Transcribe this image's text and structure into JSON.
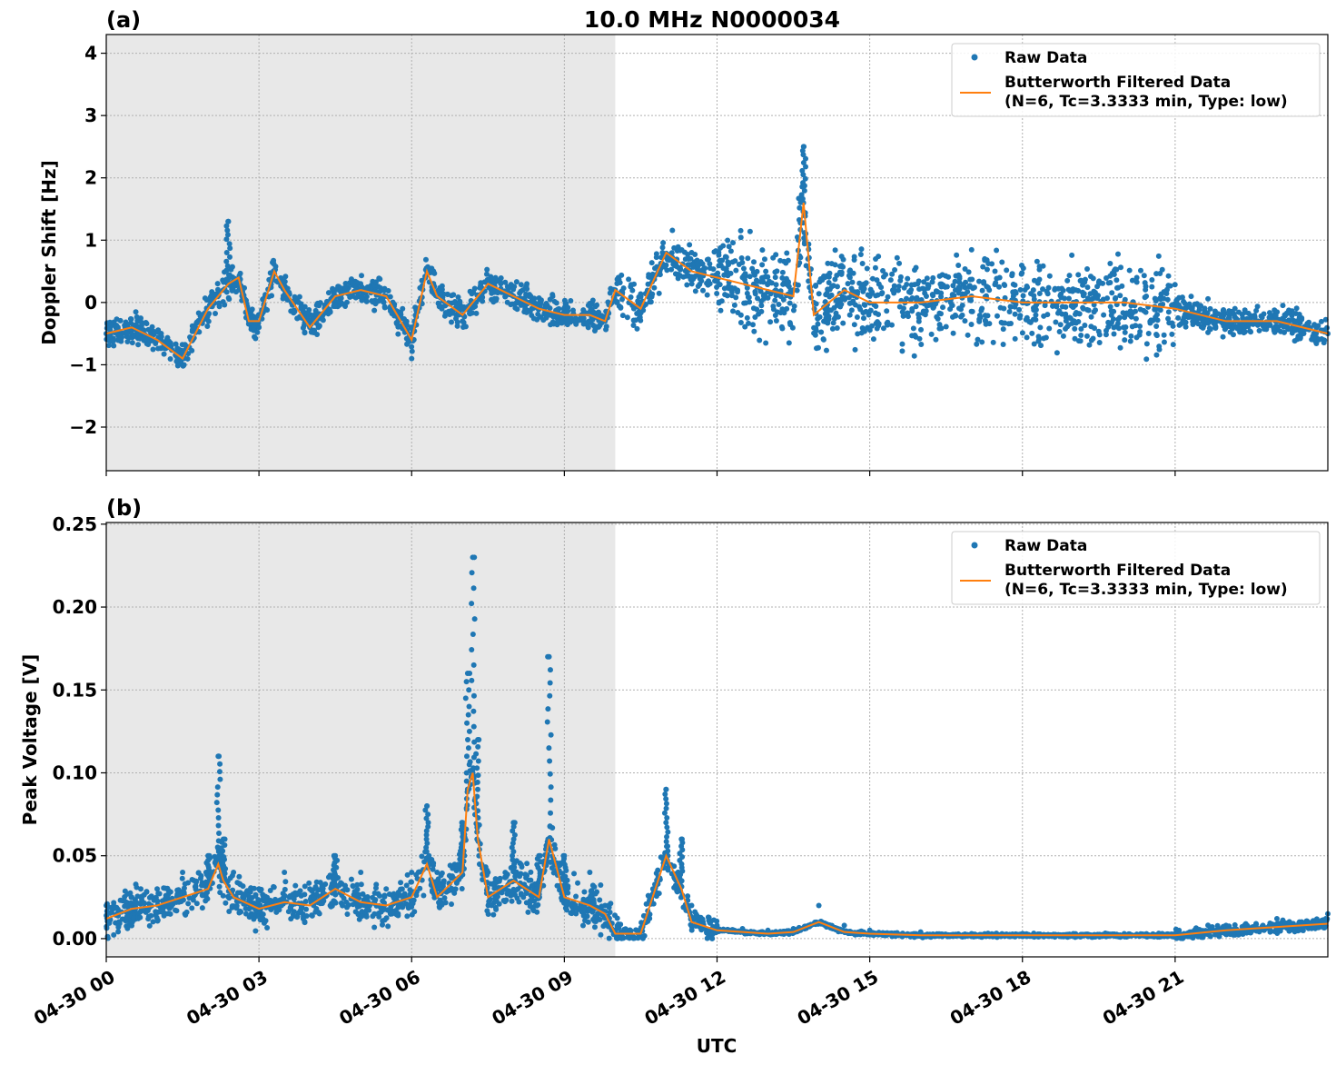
{
  "figure": {
    "title": "10.0 MHz N0000034",
    "xlabel": "UTC",
    "x_tick_labels": [
      "04-30 00",
      "04-30 03",
      "04-30 06",
      "04-30 09",
      "04-30 12",
      "04-30 15",
      "04-30 18",
      "04-30 21"
    ]
  },
  "colors": {
    "raw": "#1f77b4",
    "filtered": "#ff7f0e",
    "shade": "#e8e8e8"
  },
  "chart_data": [
    {
      "type": "scatter",
      "panel_label": "(a)",
      "ylabel": "Doppler Shift [Hz]",
      "xlim": [
        0,
        24
      ],
      "ylim": [
        -2.7,
        4.3
      ],
      "y_ticks": [
        -2,
        -1,
        0,
        1,
        2,
        3,
        4
      ],
      "y_tick_labels": [
        "−2",
        "−1",
        "0",
        "1",
        "2",
        "3",
        "4"
      ],
      "shaded_x_range": [
        0,
        10
      ],
      "grid": true,
      "legend_position": "top-right",
      "legend": [
        {
          "label": "Raw Data"
        },
        {
          "label_line1": "Butterworth Filtered Data",
          "label_line2": "(N=6, Tc=3.3333 min, Type: low)"
        }
      ],
      "series": [
        {
          "name": "Raw Data",
          "type": "scatter",
          "x": [
            0.0,
            0.5,
            1.0,
            1.5,
            2.0,
            2.4,
            2.6,
            2.8,
            3.0,
            3.3,
            3.5,
            4.0,
            4.5,
            5.0,
            5.5,
            6.0,
            6.3,
            6.5,
            7.0,
            7.5,
            8.0,
            8.5,
            9.0,
            9.5,
            9.8,
            10.0,
            10.5,
            11.0,
            11.5,
            12.0,
            12.5,
            13.0,
            13.5,
            13.7,
            13.9,
            14.5,
            15.0,
            16.0,
            17.0,
            18.0,
            19.0,
            20.0,
            21.0,
            21.5,
            22.0,
            23.0,
            24.0
          ],
          "y": [
            -0.5,
            -0.5,
            -0.6,
            -0.9,
            -0.2,
            1.3,
            0.3,
            -0.3,
            -0.4,
            0.5,
            0.2,
            -0.4,
            0.2,
            0.2,
            0.1,
            -0.9,
            0.5,
            0.1,
            -0.3,
            0.3,
            0.1,
            -0.1,
            -0.2,
            -0.3,
            -0.3,
            0.2,
            0.0,
            0.6,
            0.8,
            0.4,
            0.4,
            0.3,
            0.2,
            2.5,
            0.0,
            0.2,
            0.1,
            0.0,
            0.1,
            0.0,
            0.0,
            0.0,
            -0.1,
            -0.2,
            -0.3,
            -0.3,
            -0.5
          ]
        },
        {
          "name": "Butterworth Filtered Data",
          "type": "line",
          "x": [
            0.0,
            0.5,
            1.0,
            1.5,
            2.0,
            2.4,
            2.6,
            2.8,
            3.0,
            3.3,
            3.5,
            4.0,
            4.5,
            5.0,
            5.5,
            6.0,
            6.3,
            6.5,
            7.0,
            7.5,
            8.0,
            8.5,
            9.0,
            9.5,
            9.8,
            10.0,
            10.5,
            11.0,
            11.5,
            12.0,
            12.5,
            13.0,
            13.5,
            13.7,
            13.9,
            14.5,
            15.0,
            16.0,
            17.0,
            18.0,
            19.0,
            20.0,
            21.0,
            21.5,
            22.0,
            23.0,
            24.0
          ],
          "y": [
            -0.5,
            -0.4,
            -0.6,
            -0.9,
            -0.1,
            0.3,
            0.4,
            -0.3,
            -0.3,
            0.5,
            0.2,
            -0.4,
            0.1,
            0.2,
            0.1,
            -0.6,
            0.5,
            0.1,
            -0.2,
            0.3,
            0.1,
            -0.1,
            -0.2,
            -0.2,
            -0.3,
            0.2,
            -0.1,
            0.8,
            0.5,
            0.4,
            0.3,
            0.2,
            0.1,
            1.6,
            -0.2,
            0.2,
            0.0,
            0.0,
            0.1,
            0.0,
            0.0,
            0.0,
            -0.1,
            -0.2,
            -0.3,
            -0.3,
            -0.5
          ]
        }
      ]
    },
    {
      "type": "scatter",
      "panel_label": "(b)",
      "ylabel": "Peak Voltage [V]",
      "xlim": [
        0,
        24
      ],
      "ylim": [
        -0.011,
        0.251
      ],
      "y_ticks": [
        0.0,
        0.05,
        0.1,
        0.15,
        0.2,
        0.25
      ],
      "y_tick_labels": [
        "0.00",
        "0.05",
        "0.10",
        "0.15",
        "0.20",
        "0.25"
      ],
      "shaded_x_range": [
        0,
        10
      ],
      "grid": true,
      "legend_position": "top-right",
      "legend": [
        {
          "label": "Raw Data"
        },
        {
          "label_line1": "Butterworth Filtered Data",
          "label_line2": "(N=6, Tc=3.3333 min, Type: low)"
        }
      ],
      "series": [
        {
          "name": "Raw Data",
          "type": "scatter",
          "x": [
            0.0,
            0.5,
            1.0,
            1.5,
            2.0,
            2.2,
            2.3,
            2.5,
            3.0,
            3.5,
            4.0,
            4.5,
            5.0,
            5.5,
            6.0,
            6.3,
            6.5,
            7.0,
            7.1,
            7.2,
            7.3,
            7.5,
            8.0,
            8.5,
            8.7,
            9.0,
            9.5,
            9.8,
            10.0,
            10.5,
            11.0,
            11.3,
            11.5,
            12.0,
            12.5,
            13.0,
            13.5,
            14.0,
            14.5,
            15.0,
            16.0,
            17.0,
            18.0,
            19.0,
            20.0,
            21.0,
            22.0,
            23.0,
            24.0
          ],
          "y": [
            0.02,
            0.025,
            0.03,
            0.04,
            0.05,
            0.11,
            0.06,
            0.04,
            0.03,
            0.04,
            0.03,
            0.05,
            0.04,
            0.03,
            0.04,
            0.08,
            0.04,
            0.07,
            0.16,
            0.23,
            0.12,
            0.04,
            0.07,
            0.05,
            0.17,
            0.05,
            0.04,
            0.02,
            0.005,
            0.005,
            0.09,
            0.06,
            0.02,
            0.008,
            0.006,
            0.005,
            0.006,
            0.02,
            0.008,
            0.005,
            0.004,
            0.003,
            0.003,
            0.003,
            0.003,
            0.003,
            0.008,
            0.012,
            0.015
          ]
        },
        {
          "name": "Butterworth Filtered Data",
          "type": "line",
          "x": [
            0.0,
            0.5,
            1.0,
            1.5,
            2.0,
            2.2,
            2.3,
            2.5,
            3.0,
            3.5,
            4.0,
            4.5,
            5.0,
            5.5,
            6.0,
            6.3,
            6.5,
            7.0,
            7.1,
            7.2,
            7.3,
            7.5,
            8.0,
            8.5,
            8.7,
            9.0,
            9.5,
            9.8,
            10.0,
            10.5,
            11.0,
            11.3,
            11.5,
            12.0,
            12.5,
            13.0,
            13.5,
            14.0,
            14.5,
            15.0,
            16.0,
            17.0,
            18.0,
            19.0,
            20.0,
            21.0,
            22.0,
            23.0,
            24.0
          ],
          "y": [
            0.012,
            0.018,
            0.02,
            0.025,
            0.03,
            0.045,
            0.035,
            0.025,
            0.018,
            0.022,
            0.02,
            0.03,
            0.022,
            0.02,
            0.025,
            0.045,
            0.025,
            0.04,
            0.09,
            0.1,
            0.06,
            0.025,
            0.035,
            0.025,
            0.06,
            0.025,
            0.02,
            0.015,
            0.003,
            0.003,
            0.05,
            0.03,
            0.01,
            0.005,
            0.004,
            0.003,
            0.004,
            0.01,
            0.004,
            0.003,
            0.002,
            0.002,
            0.002,
            0.002,
            0.002,
            0.002,
            0.005,
            0.007,
            0.009
          ]
        }
      ]
    }
  ]
}
